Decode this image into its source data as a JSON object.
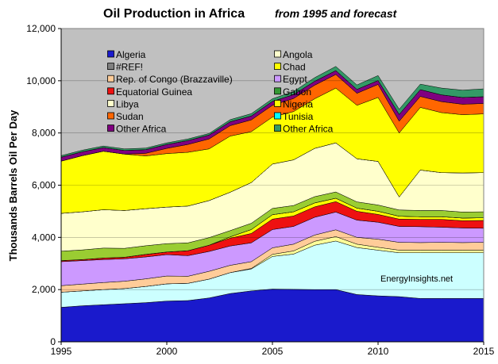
{
  "chart_data": {
    "type": "area",
    "title": "Oil Production in Africa",
    "subtitle": "from 1995 and forecast",
    "ylabel": "Thousands Barrels Oil Per Day",
    "xlabel": "",
    "xlim": [
      1995,
      2015
    ],
    "ylim": [
      0,
      12000
    ],
    "x_ticks": [
      "1995",
      "2000",
      "2005",
      "2010",
      "2015"
    ],
    "y_ticks": [
      "0",
      "2,000",
      "4,000",
      "6,000",
      "8,000",
      "10,000",
      "12,000"
    ],
    "grid": true,
    "stacked": true,
    "legend_position": "inside-top-left",
    "annotation": "EnergyInsights.net",
    "plot_background": "#c0c0c0",
    "x": [
      1995,
      1996,
      1997,
      1998,
      1999,
      2000,
      2001,
      2002,
      2003,
      2004,
      2005,
      2006,
      2007,
      2008,
      2009,
      2010,
      2011,
      2012,
      2013,
      2014,
      2015
    ],
    "series": [
      {
        "name": "Algeria",
        "color": "#1a1acc",
        "values": [
          1320,
          1380,
          1420,
          1460,
          1500,
          1560,
          1580,
          1680,
          1850,
          1950,
          2020,
          2010,
          2000,
          2000,
          1810,
          1760,
          1730,
          1660,
          1660,
          1660,
          1660
        ]
      },
      {
        "name": "Tunisia",
        "color": "#ccffff",
        "values": [
          580,
          570,
          580,
          580,
          620,
          660,
          660,
          720,
          800,
          840,
          1250,
          1350,
          1700,
          1860,
          1800,
          1750,
          1680,
          1750,
          1750,
          1750,
          1750
        ]
      },
      {
        "name": "Nigeria",
        "color": "#ffff99",
        "values": [
          0,
          0,
          0,
          0,
          0,
          0,
          0,
          0,
          0,
          20,
          80,
          120,
          150,
          170,
          130,
          110,
          100,
          100,
          100,
          100,
          100
        ]
      },
      {
        "name": "Rep. of Congo (Brazzaville)",
        "color": "#ffcc99",
        "values": [
          250,
          260,
          270,
          280,
          290,
          300,
          270,
          300,
          280,
          260,
          250,
          260,
          240,
          260,
          260,
          310,
          300,
          290,
          300,
          290,
          300
        ]
      },
      {
        "name": "Egypt",
        "color": "#cc99ff",
        "values": [
          920,
          900,
          880,
          860,
          840,
          820,
          790,
          760,
          740,
          720,
          700,
          680,
          680,
          680,
          660,
          650,
          610,
          610,
          580,
          560,
          540
        ]
      },
      {
        "name": "Equatorial Guinea",
        "color": "#ee1111",
        "values": [
          40,
          40,
          60,
          60,
          100,
          100,
          190,
          240,
          300,
          360,
          400,
          400,
          400,
          400,
          340,
          300,
          280,
          280,
          300,
          280,
          300
        ]
      },
      {
        "name": "Chad",
        "color": "#ffff00",
        "values": [
          0,
          0,
          0,
          0,
          0,
          0,
          0,
          0,
          50,
          150,
          170,
          160,
          150,
          130,
          120,
          120,
          110,
          100,
          100,
          100,
          100
        ]
      },
      {
        "name": "Other Africa",
        "color": "#339933",
        "values": [
          0,
          0,
          0,
          0,
          0,
          0,
          0,
          0,
          0,
          0,
          0,
          0,
          0,
          0,
          0,
          0,
          0,
          0,
          0,
          0,
          0
        ]
      },
      {
        "name": "Gabon",
        "color": "#9acd32",
        "values": [
          360,
          370,
          380,
          340,
          330,
          320,
          300,
          290,
          240,
          240,
          240,
          240,
          240,
          240,
          240,
          240,
          240,
          240,
          240,
          230,
          230
        ]
      },
      {
        "name": "Libya",
        "color": "#ffffcc",
        "values": [
          1450,
          1460,
          1470,
          1450,
          1420,
          1400,
          1410,
          1420,
          1470,
          1560,
          1700,
          1750,
          1850,
          1880,
          1650,
          1670,
          500,
          1550,
          1450,
          1500,
          1500
        ]
      },
      {
        "name": "Angola",
        "color": "#ffff00",
        "values": [
          0,
          0,
          0,
          0,
          0,
          0,
          0,
          0,
          0,
          0,
          0,
          0,
          0,
          0,
          0,
          0,
          0,
          0,
          0,
          0,
          0
        ]
      },
      {
        "name": "Chad",
        "color": "#ffff00",
        "values": [
          2000,
          2150,
          2240,
          2160,
          2020,
          2050,
          2060,
          1980,
          2150,
          1950,
          1800,
          1850,
          1900,
          2100,
          2050,
          2450,
          2450,
          2400,
          2300,
          2230,
          2250
        ]
      },
      {
        "name": "Sudan",
        "color": "#ff6600",
        "values": [
          0,
          0,
          0,
          0,
          100,
          200,
          300,
          380,
          400,
          450,
          450,
          500,
          520,
          520,
          460,
          500,
          450,
          420,
          420,
          400,
          400
        ]
      },
      {
        "name": "Other Africa",
        "color": "#800080",
        "values": [
          150,
          150,
          140,
          140,
          140,
          150,
          150,
          150,
          150,
          150,
          150,
          150,
          150,
          150,
          150,
          150,
          260,
          260,
          260,
          260,
          260
        ]
      },
      {
        "name": "#REF!",
        "color": "#808080",
        "values": [
          0,
          0,
          0,
          0,
          0,
          0,
          0,
          0,
          0,
          0,
          0,
          0,
          0,
          0,
          0,
          0,
          0,
          0,
          0,
          0,
          0
        ]
      },
      {
        "name": "Other Africa",
        "color": "#339966",
        "values": [
          60,
          60,
          60,
          60,
          60,
          60,
          60,
          60,
          80,
          90,
          100,
          120,
          140,
          160,
          170,
          190,
          200,
          210,
          260,
          280,
          300
        ]
      }
    ],
    "legend": [
      {
        "label": "Algeria",
        "color": "#1a1acc"
      },
      {
        "label": "Angola",
        "color": "#ffffcc"
      },
      {
        "label": "#REF!",
        "color": "#808080"
      },
      {
        "label": "Chad",
        "color": "#ffff00"
      },
      {
        "label": "Rep. of Congo (Brazzaville)",
        "color": "#ffcc99"
      },
      {
        "label": "Egypt",
        "color": "#cc99ff"
      },
      {
        "label": "Equatorial Guinea",
        "color": "#ee1111"
      },
      {
        "label": "Gabon",
        "color": "#339933"
      },
      {
        "label": "Libya",
        "color": "#ffffcc"
      },
      {
        "label": "Nigeria",
        "color": "#ffff00"
      },
      {
        "label": "Sudan",
        "color": "#ff6600"
      },
      {
        "label": "Tunisia",
        "color": "#00ffff"
      },
      {
        "label": "Other Africa",
        "color": "#800080"
      },
      {
        "label": "Other Africa",
        "color": "#339966"
      }
    ]
  }
}
